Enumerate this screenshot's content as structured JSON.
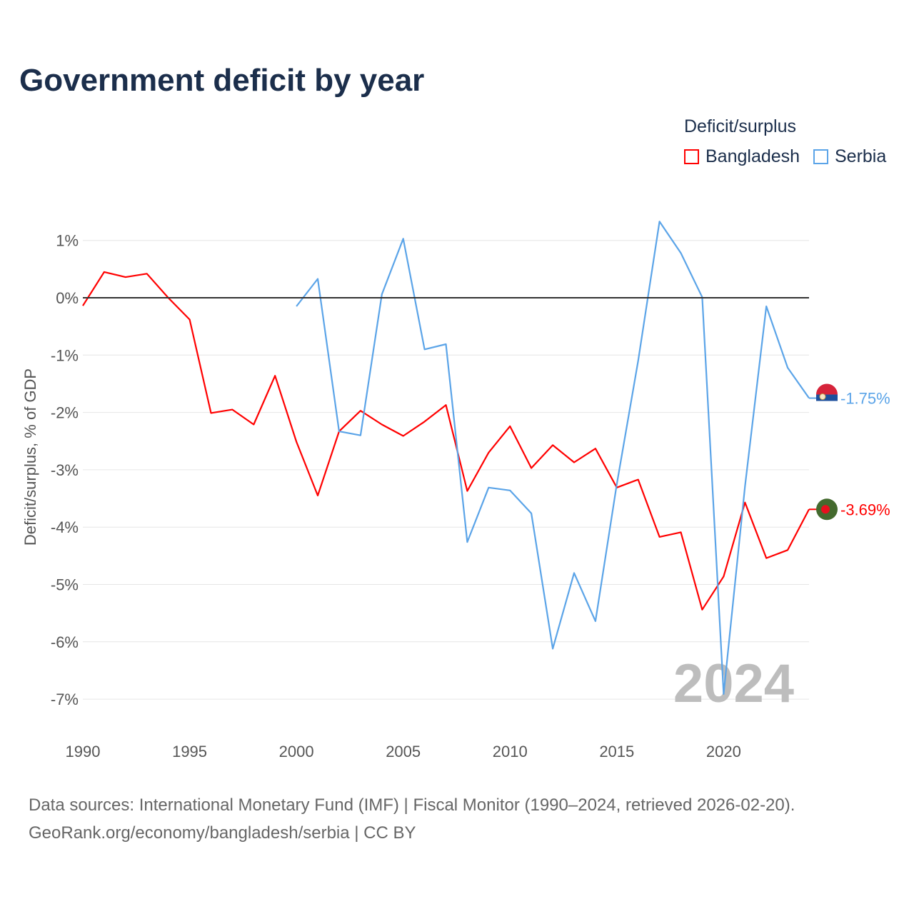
{
  "title": "Government deficit by year",
  "legend": {
    "title": "Deficit/surplus",
    "items": [
      {
        "name": "Bangladesh",
        "color": "#ff0000"
      },
      {
        "name": "Serbia",
        "color": "#5ba4e8"
      }
    ]
  },
  "watermark_year": "2024",
  "source": {
    "line1": "Data sources: International Monetary Fund (IMF) | Fiscal Monitor (1990–2024, retrieved 2026-02-20).",
    "line2": "GeoRank.org/economy/bangladesh/serbia | CC BY"
  },
  "chart_data": {
    "type": "line",
    "title": "Government deficit by year",
    "xlabel": "",
    "ylabel": "Deficit/surplus, % of GDP",
    "xlim": [
      1990,
      2024
    ],
    "ylim": [
      -7.5,
      1.5
    ],
    "x_ticks": [
      1990,
      1995,
      2000,
      2005,
      2010,
      2015,
      2020
    ],
    "x_tick_labels": [
      "1990",
      "1995",
      "2000",
      "2005",
      "2010",
      "2015",
      "2020"
    ],
    "y_ticks": [
      1,
      0,
      -1,
      -2,
      -3,
      -4,
      -5,
      -6,
      -7
    ],
    "y_tick_labels": [
      "1%",
      "0%",
      "-1%",
      "-2%",
      "-3%",
      "-4%",
      "-5%",
      "-6%",
      "-7%"
    ],
    "grid": true,
    "legend_position": "top-right",
    "series": [
      {
        "name": "Bangladesh",
        "color": "#ff0000",
        "end_label": "-3.69%",
        "start_year": 1990,
        "values": [
          -0.14,
          0.45,
          0.36,
          0.42,
          0.0,
          -0.38,
          -2.01,
          -1.95,
          -2.21,
          -1.36,
          -2.51,
          -3.45,
          -2.33,
          -1.97,
          -2.21,
          -2.41,
          -2.16,
          -1.87,
          -3.37,
          -2.7,
          -2.24,
          -2.97,
          -2.57,
          -2.87,
          -2.63,
          -3.31,
          -3.17,
          -4.17,
          -4.09,
          -5.44,
          -4.86,
          -3.57,
          -4.54,
          -4.4,
          -3.69
        ]
      },
      {
        "name": "Serbia",
        "color": "#5ba4e8",
        "end_label": "-1.75%",
        "start_year": 2000,
        "values": [
          -0.15,
          0.33,
          -2.33,
          -2.4,
          0.06,
          1.03,
          -0.9,
          -0.81,
          -4.26,
          -3.31,
          -3.36,
          -3.76,
          -6.12,
          -4.8,
          -5.64,
          -3.25,
          -1.1,
          1.33,
          0.78,
          0.01,
          -6.91,
          -3.29,
          -0.15,
          -1.22,
          -1.75
        ]
      }
    ]
  }
}
